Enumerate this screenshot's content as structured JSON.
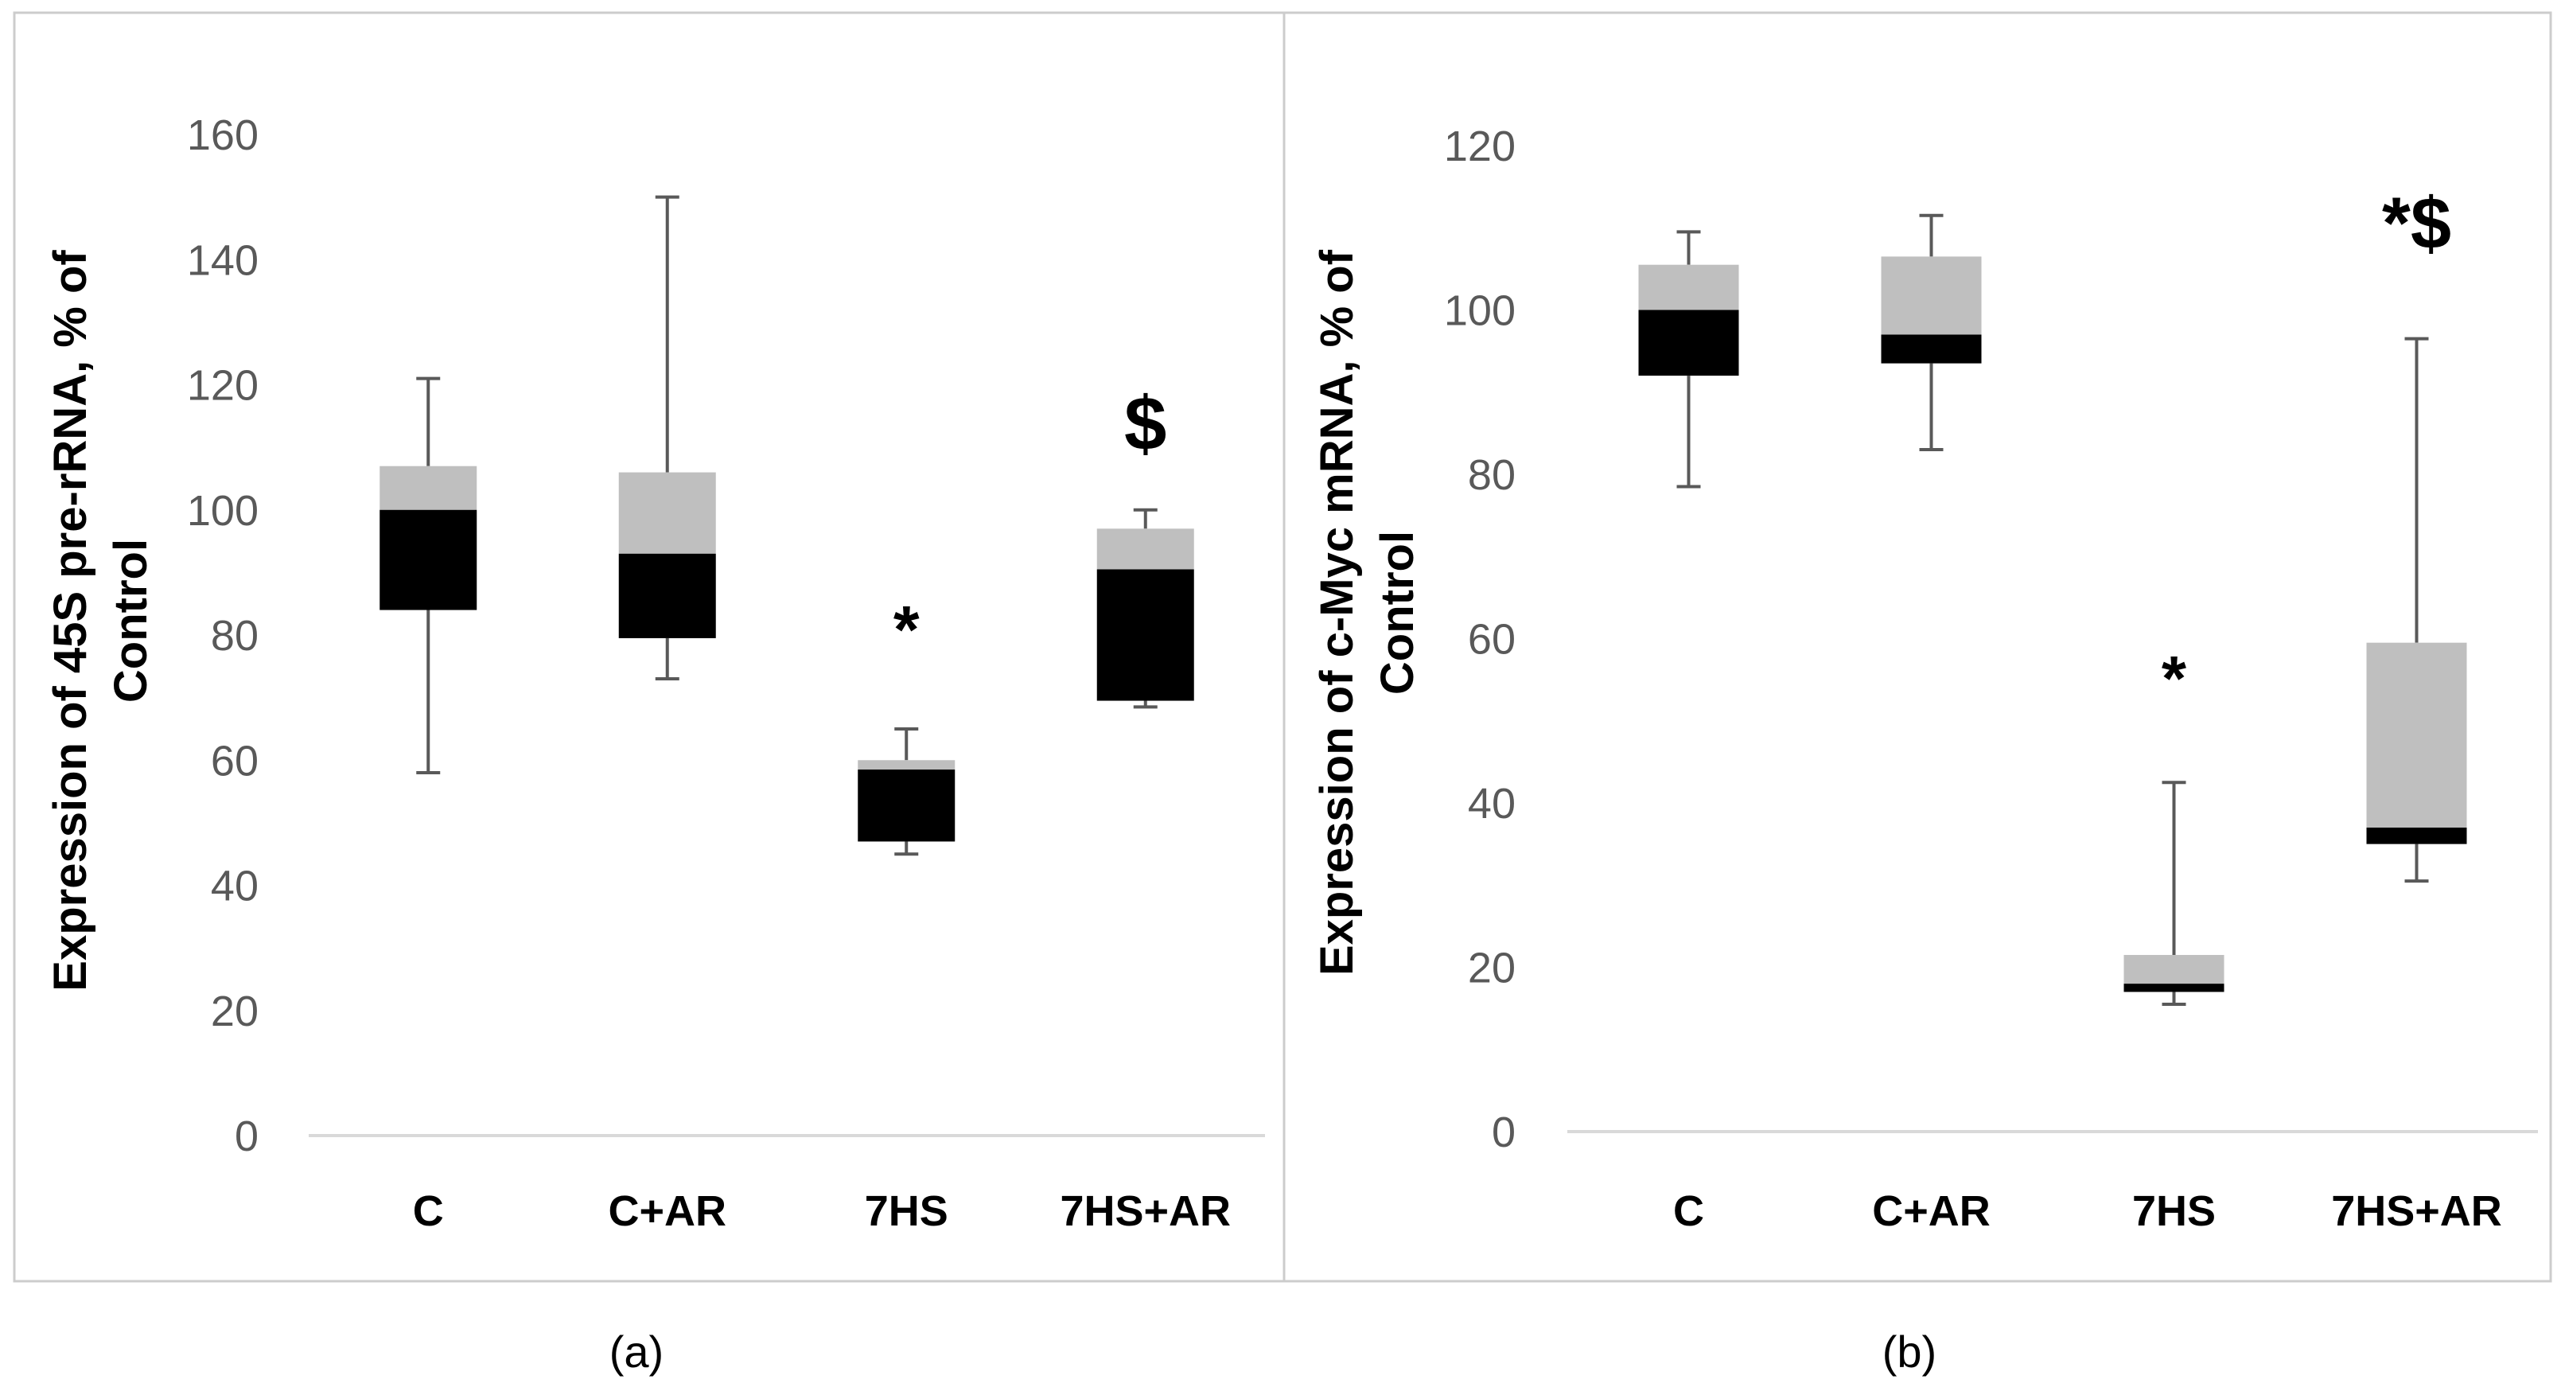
{
  "colors": {
    "q1_box": "#000000",
    "q3_box": "#bfbfbf",
    "whisker": "#595959",
    "axis": "#d9d9d9",
    "panel_border": "#cccccc"
  },
  "chart_data": [
    {
      "type": "boxplot",
      "panel_label": "(a)",
      "ylabel_line1": "Expression of 45S pre-rRNA, % of",
      "ylabel_line2": "Control",
      "ylim": [
        0,
        160
      ],
      "yticks": [
        0,
        20,
        40,
        60,
        80,
        100,
        120,
        140,
        160
      ],
      "grid": false,
      "categories": [
        "C",
        "C+AR",
        "7HS",
        "7HS+AR"
      ],
      "boxes": [
        {
          "min": 58,
          "q1": 84,
          "median": 100,
          "q3": 107,
          "max": 121
        },
        {
          "min": 73,
          "q1": 79.5,
          "median": 93,
          "q3": 106,
          "max": 150
        },
        {
          "min": 45,
          "q1": 47,
          "median": 58.5,
          "q3": 60,
          "max": 65
        },
        {
          "min": 68.5,
          "q1": 69.5,
          "median": 90.5,
          "q3": 97,
          "max": 100
        }
      ],
      "annotations": [
        "",
        "",
        "*",
        "$"
      ]
    },
    {
      "type": "boxplot",
      "panel_label": "(b)",
      "ylabel_line1": "Expression of c-Myc mRNA, % of",
      "ylabel_line2": "Control",
      "ylim": [
        0,
        120
      ],
      "yticks": [
        0,
        20,
        40,
        60,
        80,
        100,
        120
      ],
      "grid": false,
      "categories": [
        "C",
        "C+AR",
        "7HS",
        "7HS+AR"
      ],
      "boxes": [
        {
          "min": 78.5,
          "q1": 92,
          "median": 100,
          "q3": 105.5,
          "max": 109.5
        },
        {
          "min": 83,
          "q1": 93.5,
          "median": 97,
          "q3": 106.5,
          "max": 111.5
        },
        {
          "min": 15.5,
          "q1": 17,
          "median": 18,
          "q3": 21.5,
          "max": 42.5
        },
        {
          "min": 30.5,
          "q1": 35,
          "median": 37,
          "q3": 59.5,
          "max": 96.5
        }
      ],
      "annotations": [
        "",
        "",
        "*",
        "*$"
      ]
    }
  ]
}
